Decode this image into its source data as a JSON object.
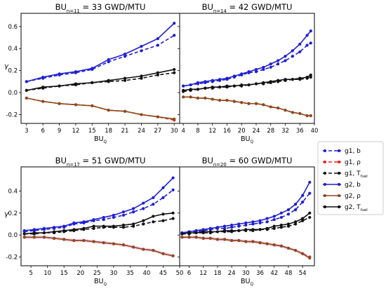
{
  "figure": {
    "legend": [
      {
        "label": "g1, b",
        "color": "#1f1fd6",
        "style": "dashed"
      },
      {
        "label": "g1, ρ",
        "color": "#e8211c",
        "style": "dashed"
      },
      {
        "label": "g1, T_fuel",
        "color": "#111111",
        "style": "dashed"
      },
      {
        "label": "g2, b",
        "color": "#1f1fd6",
        "style": "solid"
      },
      {
        "label": "g2, ρ",
        "color": "#8b4a1c",
        "style": "solid"
      },
      {
        "label": "g2, T_fuel",
        "color": "#111111",
        "style": "solid"
      }
    ]
  },
  "chart_data": [
    {
      "type": "line",
      "title": "BU_n=11 = 33 GWD/MTU",
      "xlabel": "BU_Q",
      "ylabel": "γ",
      "xlim": [
        2,
        31
      ],
      "ylim": [
        -0.28,
        0.72
      ],
      "xticks": [
        3,
        6,
        9,
        12,
        15,
        18,
        21,
        24,
        27,
        30
      ],
      "yticks": [
        -0.2,
        0.0,
        0.2,
        0.4,
        0.6
      ],
      "x": [
        3,
        6,
        9,
        12,
        15,
        18,
        21,
        24,
        27,
        30
      ],
      "series": [
        {
          "name": "g1, b",
          "values": [
            0.1,
            0.13,
            0.16,
            0.18,
            0.21,
            0.28,
            0.33,
            0.38,
            0.43,
            0.52
          ]
        },
        {
          "name": "g1, ρ",
          "values": [
            -0.05,
            -0.08,
            -0.1,
            -0.11,
            -0.12,
            -0.16,
            -0.17,
            -0.2,
            -0.22,
            -0.25
          ]
        },
        {
          "name": "g1, T_fuel",
          "values": [
            0.02,
            0.04,
            0.06,
            0.07,
            0.09,
            0.1,
            0.11,
            0.13,
            0.16,
            0.18
          ]
        },
        {
          "name": "g2, b",
          "values": [
            0.1,
            0.14,
            0.17,
            0.19,
            0.22,
            0.3,
            0.35,
            0.42,
            0.49,
            0.63
          ]
        },
        {
          "name": "g2, ρ",
          "values": [
            -0.05,
            -0.08,
            -0.1,
            -0.11,
            -0.12,
            -0.16,
            -0.17,
            -0.2,
            -0.22,
            -0.24
          ]
        },
        {
          "name": "g2, T_fuel",
          "values": [
            0.02,
            0.05,
            0.06,
            0.08,
            0.09,
            0.11,
            0.13,
            0.15,
            0.18,
            0.21
          ]
        }
      ]
    },
    {
      "type": "line",
      "title": "BU_n=14 = 42 GWD/MTU",
      "xlabel": "BU_Q",
      "ylabel": "",
      "xlim": [
        3,
        40
      ],
      "ylim": [
        -0.28,
        0.72
      ],
      "xticks": [
        4,
        8,
        12,
        16,
        20,
        24,
        28,
        32,
        36,
        40
      ],
      "yticks": [
        -0.2,
        0.0,
        0.2,
        0.4,
        0.6
      ],
      "x": [
        4,
        6,
        8,
        10,
        12,
        14,
        16,
        18,
        20,
        22,
        24,
        26,
        28,
        30,
        32,
        34,
        36,
        38,
        39
      ],
      "series": [
        {
          "name": "g1, b",
          "values": [
            0.06,
            0.07,
            0.08,
            0.09,
            0.1,
            0.11,
            0.12,
            0.14,
            0.16,
            0.18,
            0.19,
            0.21,
            0.23,
            0.26,
            0.29,
            0.33,
            0.37,
            0.43,
            0.45
          ]
        },
        {
          "name": "g1, ρ",
          "values": [
            -0.04,
            -0.04,
            -0.05,
            -0.05,
            -0.06,
            -0.07,
            -0.07,
            -0.08,
            -0.09,
            -0.1,
            -0.1,
            -0.11,
            -0.13,
            -0.14,
            -0.16,
            -0.18,
            -0.19,
            -0.21,
            -0.21
          ]
        },
        {
          "name": "g1, T_fuel",
          "values": [
            0.01,
            0.02,
            0.03,
            0.04,
            0.04,
            0.05,
            0.05,
            0.06,
            0.06,
            0.07,
            0.08,
            0.08,
            0.09,
            0.1,
            0.11,
            0.12,
            0.12,
            0.13,
            0.14
          ]
        },
        {
          "name": "g2, b",
          "values": [
            0.06,
            0.07,
            0.09,
            0.1,
            0.11,
            0.12,
            0.13,
            0.15,
            0.17,
            0.19,
            0.21,
            0.23,
            0.26,
            0.29,
            0.33,
            0.38,
            0.44,
            0.52,
            0.56
          ]
        },
        {
          "name": "g2, ρ",
          "values": [
            -0.04,
            -0.04,
            -0.05,
            -0.05,
            -0.06,
            -0.07,
            -0.07,
            -0.08,
            -0.09,
            -0.1,
            -0.1,
            -0.11,
            -0.13,
            -0.14,
            -0.16,
            -0.18,
            -0.19,
            -0.21,
            -0.21
          ]
        },
        {
          "name": "g2, T_fuel",
          "values": [
            0.02,
            0.03,
            0.03,
            0.04,
            0.05,
            0.05,
            0.06,
            0.06,
            0.07,
            0.07,
            0.08,
            0.09,
            0.1,
            0.11,
            0.12,
            0.12,
            0.13,
            0.14,
            0.16
          ]
        }
      ]
    },
    {
      "type": "line",
      "title": "BU_n=17 = 51 GWD/MTU",
      "xlabel": "BU_Q",
      "ylabel": "γ",
      "xlim": [
        2,
        50
      ],
      "ylim": [
        -0.28,
        0.62
      ],
      "xticks": [
        5,
        10,
        15,
        20,
        25,
        30,
        35,
        40,
        45,
        50
      ],
      "yticks": [
        -0.2,
        0.0,
        0.2,
        0.4
      ],
      "x": [
        3,
        6,
        9,
        12,
        15,
        18,
        21,
        24,
        27,
        30,
        33,
        36,
        39,
        42,
        45,
        48
      ],
      "series": [
        {
          "name": "g1, b",
          "values": [
            0.03,
            0.04,
            0.05,
            0.06,
            0.07,
            0.1,
            0.11,
            0.13,
            0.14,
            0.16,
            0.18,
            0.21,
            0.24,
            0.28,
            0.34,
            0.41
          ]
        },
        {
          "name": "g1, ρ",
          "values": [
            -0.02,
            -0.02,
            -0.02,
            -0.03,
            -0.04,
            -0.05,
            -0.05,
            -0.06,
            -0.07,
            -0.08,
            -0.09,
            -0.11,
            -0.13,
            -0.14,
            -0.17,
            -0.19
          ]
        },
        {
          "name": "g1, T_fuel",
          "values": [
            0.01,
            0.01,
            0.02,
            0.02,
            0.03,
            0.04,
            0.05,
            0.06,
            0.07,
            0.07,
            0.07,
            0.08,
            0.1,
            0.12,
            0.13,
            0.15
          ]
        },
        {
          "name": "g2, b",
          "values": [
            0.04,
            0.05,
            0.06,
            0.07,
            0.08,
            0.11,
            0.12,
            0.14,
            0.16,
            0.18,
            0.21,
            0.24,
            0.29,
            0.34,
            0.43,
            0.52
          ]
        },
        {
          "name": "g2, ρ",
          "values": [
            -0.02,
            -0.02,
            -0.02,
            -0.03,
            -0.04,
            -0.05,
            -0.05,
            -0.06,
            -0.07,
            -0.08,
            -0.09,
            -0.11,
            -0.13,
            -0.14,
            -0.17,
            -0.19
          ]
        },
        {
          "name": "g2, T_fuel",
          "values": [
            0.01,
            0.02,
            0.02,
            0.03,
            0.04,
            0.05,
            0.06,
            0.08,
            0.08,
            0.08,
            0.09,
            0.1,
            0.13,
            0.17,
            0.19,
            0.2
          ]
        }
      ]
    },
    {
      "type": "line",
      "title": "BU_n=20 = 60 GWD/MTU",
      "xlabel": "BU_Q",
      "ylabel": "",
      "xlim": [
        2,
        59
      ],
      "ylim": [
        -0.28,
        0.62
      ],
      "xticks": [
        6,
        12,
        18,
        24,
        30,
        36,
        42,
        48,
        54
      ],
      "yticks": [
        -0.2,
        0.0,
        0.2,
        0.4
      ],
      "x": [
        3,
        6,
        9,
        12,
        15,
        18,
        21,
        24,
        27,
        30,
        33,
        36,
        39,
        42,
        45,
        48,
        51,
        54,
        57
      ],
      "series": [
        {
          "name": "g1, b",
          "values": [
            0.02,
            0.03,
            0.03,
            0.04,
            0.05,
            0.06,
            0.06,
            0.07,
            0.08,
            0.09,
            0.1,
            0.11,
            0.12,
            0.14,
            0.16,
            0.19,
            0.23,
            0.3,
            0.38
          ]
        },
        {
          "name": "g1, ρ",
          "values": [
            -0.02,
            -0.02,
            -0.02,
            -0.03,
            -0.03,
            -0.04,
            -0.04,
            -0.05,
            -0.05,
            -0.06,
            -0.06,
            -0.07,
            -0.08,
            -0.09,
            -0.1,
            -0.12,
            -0.14,
            -0.17,
            -0.2
          ]
        },
        {
          "name": "g1, T_fuel",
          "values": [
            0.01,
            0.01,
            0.02,
            0.02,
            0.02,
            0.03,
            0.03,
            0.03,
            0.04,
            0.04,
            0.04,
            0.05,
            0.05,
            0.06,
            0.07,
            0.08,
            0.1,
            0.13,
            0.16
          ]
        },
        {
          "name": "g2, b",
          "values": [
            0.02,
            0.03,
            0.04,
            0.05,
            0.06,
            0.07,
            0.08,
            0.09,
            0.1,
            0.11,
            0.12,
            0.13,
            0.15,
            0.17,
            0.2,
            0.23,
            0.28,
            0.36,
            0.48
          ]
        },
        {
          "name": "g2, ρ",
          "values": [
            -0.02,
            -0.02,
            -0.02,
            -0.03,
            -0.03,
            -0.04,
            -0.04,
            -0.05,
            -0.05,
            -0.06,
            -0.06,
            -0.07,
            -0.08,
            -0.09,
            -0.1,
            -0.12,
            -0.14,
            -0.17,
            -0.21
          ]
        },
        {
          "name": "g2, T_fuel",
          "values": [
            0.01,
            0.02,
            0.02,
            0.03,
            0.03,
            0.03,
            0.04,
            0.04,
            0.04,
            0.05,
            0.05,
            0.05,
            0.06,
            0.08,
            0.09,
            0.1,
            0.12,
            0.15,
            0.2
          ]
        }
      ]
    }
  ]
}
